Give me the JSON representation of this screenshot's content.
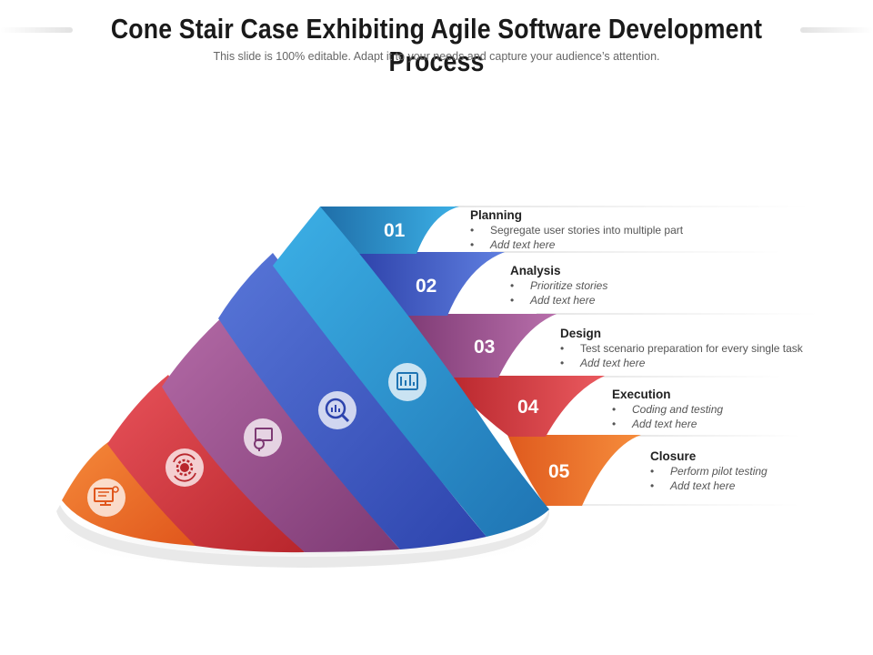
{
  "title": "Cone Stair Case Exhibiting Agile Software Development Process",
  "subtitle": "This slide is 100% editable. Adapt it to your needs and capture your audience’s attention.",
  "stages": [
    {
      "number": "01",
      "title": "Planning",
      "color": "#2a8fcf",
      "icon": "blueprint-icon",
      "bullets": [
        {
          "text": "Segregate  user stories into multiple part",
          "italic": false
        },
        {
          "text": "Add text here",
          "italic": true
        }
      ]
    },
    {
      "number": "02",
      "title": "Analysis",
      "color": "#3a55c2",
      "icon": "magnifier-chart-icon",
      "bullets": [
        {
          "text": "Prioritize stories",
          "italic": true
        },
        {
          "text": "Add text here",
          "italic": true
        }
      ]
    },
    {
      "number": "03",
      "title": "Design",
      "color": "#9a4a8a",
      "icon": "idea-presentation-icon",
      "bullets": [
        {
          "text": "Test scenario preparation for every single task",
          "italic": false
        },
        {
          "text": "Add text here",
          "italic": true
        }
      ]
    },
    {
      "number": "04",
      "title": "Execution",
      "color": "#d63a3f",
      "icon": "gear-cycle-icon",
      "bullets": [
        {
          "text": "Coding and testing",
          "italic": true
        },
        {
          "text": "Add text here",
          "italic": true
        }
      ]
    },
    {
      "number": "05",
      "title": "Closure",
      "color": "#f06a28",
      "icon": "computer-testing-icon",
      "bullets": [
        {
          "text": "Perform pilot testing",
          "italic": true
        },
        {
          "text": "Add text here",
          "italic": true
        }
      ]
    }
  ],
  "bullet_marker": "•"
}
